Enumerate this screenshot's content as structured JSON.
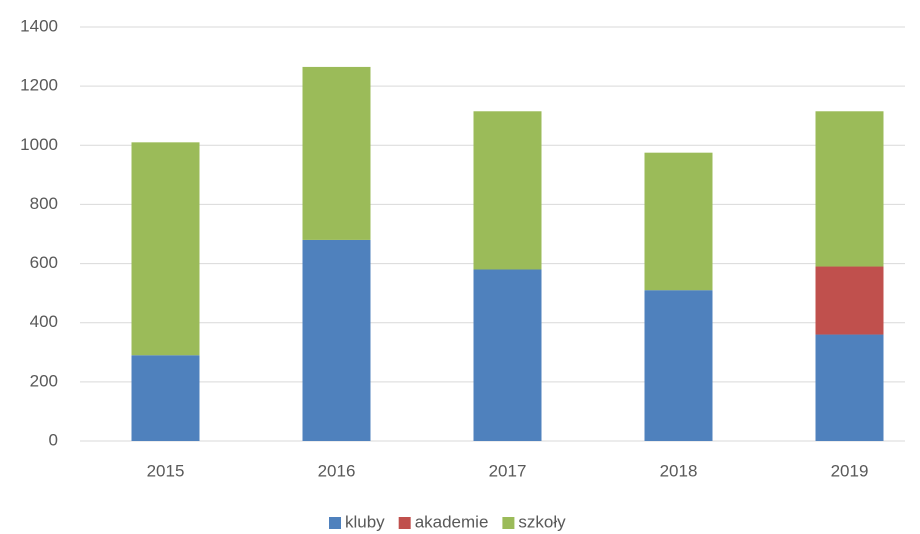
{
  "chart_data": {
    "type": "stacked_bar",
    "categories": [
      "2015",
      "2016",
      "2017",
      "2018",
      "2019"
    ],
    "series": [
      {
        "name": "kluby",
        "color": "#4f81bd",
        "values": [
          290,
          680,
          580,
          510,
          360
        ]
      },
      {
        "name": "akademie",
        "color": "#c0504d",
        "values": [
          0,
          0,
          0,
          0,
          230
        ]
      },
      {
        "name": "szkoły",
        "color": "#9bbb59",
        "values": [
          720,
          585,
          535,
          465,
          525
        ]
      }
    ],
    "ylim": [
      0,
      1400
    ],
    "yticks": [
      0,
      200,
      400,
      600,
      800,
      1000,
      1200,
      1400
    ],
    "grid": true,
    "legend": "bottom"
  }
}
